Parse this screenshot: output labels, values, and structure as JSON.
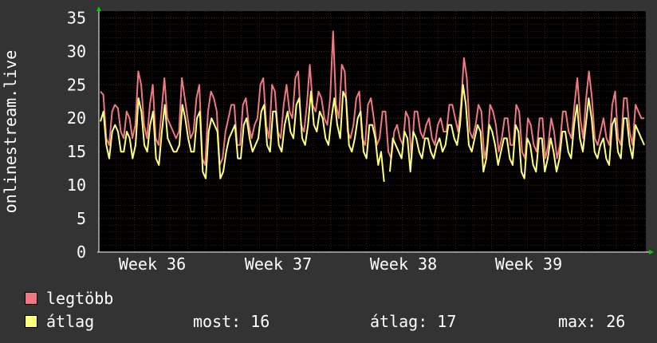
{
  "chart_data": {
    "type": "line",
    "ylabel": "onlinestream.live",
    "ylim": [
      0,
      36
    ],
    "yticks": [
      0,
      5,
      10,
      15,
      20,
      25,
      30,
      35
    ],
    "xticks": [
      "Week 36",
      "Week 37",
      "Week 38",
      "Week 39"
    ],
    "grid": true,
    "colors": {
      "background": "#333333",
      "plot": "#000000",
      "grid": "#5a2a2a",
      "axis": "#ffffff",
      "arrow": "#00cc00"
    },
    "series": [
      {
        "name": "legtöbb",
        "color": "#f07880",
        "values": [
          24,
          23.5,
          17,
          16,
          21,
          22,
          21.5,
          18,
          17,
          21,
          20,
          17,
          19,
          27,
          25,
          19,
          17,
          22,
          25,
          17,
          16,
          21,
          26,
          20,
          19,
          18,
          17,
          18,
          26,
          23,
          20,
          17,
          18,
          23,
          25,
          14,
          13,
          21,
          24,
          23,
          21,
          13,
          14,
          18,
          20,
          22,
          22,
          16,
          16,
          22,
          23,
          19,
          17,
          19,
          20,
          25,
          26,
          19,
          17,
          25,
          24,
          18,
          17,
          22,
          25,
          21,
          20,
          26,
          27,
          19,
          18,
          22,
          28,
          22,
          21,
          24,
          23,
          20,
          19,
          23,
          33,
          22,
          20,
          28,
          27,
          18,
          17,
          19,
          23,
          24,
          17,
          16,
          22,
          23,
          20,
          16,
          17,
          21,
          21,
          15,
          14,
          18,
          19,
          17,
          16,
          21,
          20,
          14,
          21,
          21,
          18,
          17,
          19,
          20,
          17,
          16,
          19,
          20,
          18,
          18,
          22,
          22,
          20,
          18,
          22,
          29,
          26,
          18,
          17,
          19,
          22,
          21,
          14,
          16,
          22,
          21,
          19,
          15,
          17,
          20,
          20,
          16,
          16,
          22,
          21,
          15,
          14,
          20,
          19,
          16,
          15,
          20,
          20,
          14,
          16,
          20,
          18,
          14,
          16,
          21,
          21,
          18,
          17,
          22,
          26,
          20,
          17,
          23,
          27,
          23,
          17,
          16,
          18,
          20,
          17,
          16,
          22,
          24,
          17,
          16,
          23,
          23,
          18,
          16,
          22,
          21,
          20,
          20
        ]
      },
      {
        "name": "átlag",
        "color": "#ffff80",
        "values": [
          19.5,
          21,
          16,
          14,
          18,
          19,
          18,
          15,
          15,
          18,
          17,
          14,
          16,
          23,
          21,
          16,
          15,
          19,
          21,
          14,
          13,
          18,
          22,
          17,
          16,
          15,
          15,
          16,
          22,
          20,
          17,
          15,
          15,
          20,
          21,
          12,
          11,
          18,
          20,
          19,
          18,
          11,
          12,
          15,
          17,
          18,
          19,
          14,
          14,
          19,
          20,
          17,
          15,
          16,
          17,
          21,
          22,
          16,
          15,
          21,
          21,
          16,
          15,
          19,
          21,
          18,
          17,
          22,
          23,
          17,
          16,
          19,
          24,
          19,
          18,
          21,
          20,
          17,
          16,
          20,
          23,
          19,
          17,
          24,
          23,
          16,
          15,
          17,
          20,
          21,
          15,
          14,
          19,
          19,
          17,
          13,
          15,
          10.5,
          null,
          12,
          17,
          16,
          15,
          14,
          18,
          17,
          12,
          18,
          17,
          15,
          14,
          17,
          17,
          15,
          14,
          16,
          17,
          15,
          16,
          19,
          19,
          17,
          16,
          19,
          25,
          22,
          16,
          15,
          17,
          19,
          18,
          12,
          14,
          19,
          18,
          16,
          13,
          15,
          17,
          17,
          14,
          13,
          19,
          18,
          12,
          11,
          17,
          16,
          13,
          12,
          17,
          17,
          12,
          14,
          17,
          15,
          12,
          14,
          18,
          18,
          15,
          14,
          19,
          22,
          17,
          15,
          19,
          23,
          20,
          15,
          14,
          16,
          17,
          14,
          13,
          19,
          20,
          15,
          14,
          20,
          20,
          16,
          14,
          19,
          18,
          17,
          16
        ]
      }
    ]
  },
  "legend": [
    {
      "label": "legtöbb",
      "color": "#f07880"
    },
    {
      "label": "átlag",
      "color": "#ffff80"
    }
  ],
  "stats": {
    "now": "most: 16",
    "avg": "átlag: 17",
    "max": "max: 26"
  }
}
